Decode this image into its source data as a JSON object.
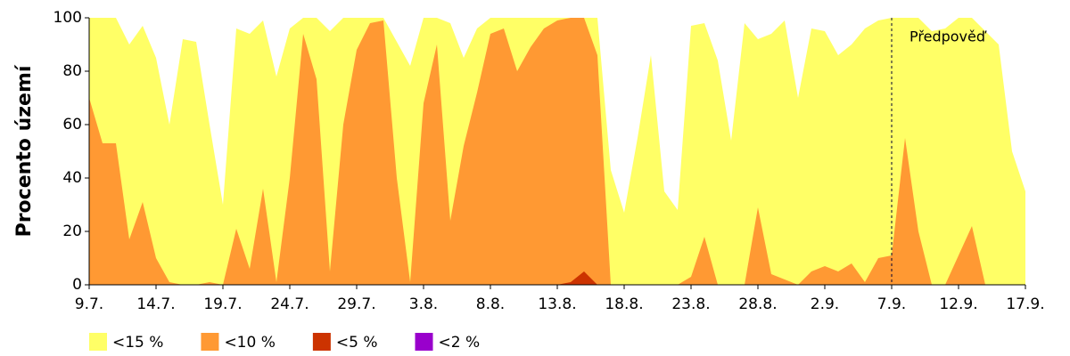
{
  "chart_data": {
    "type": "area",
    "y_label": "Procento území",
    "categories": [
      "9.7.",
      null,
      null,
      null,
      null,
      "14.7.",
      null,
      null,
      null,
      null,
      "19.7.",
      null,
      null,
      null,
      null,
      "24.7.",
      null,
      null,
      null,
      null,
      "29.7.",
      null,
      null,
      null,
      null,
      "3.8.",
      null,
      null,
      null,
      null,
      "8.8.",
      null,
      null,
      null,
      null,
      "13.8.",
      null,
      null,
      null,
      null,
      "18.8.",
      null,
      null,
      null,
      null,
      "23.8.",
      null,
      null,
      null,
      null,
      "28.8.",
      null,
      null,
      null,
      null,
      "2.9.",
      null,
      null,
      null,
      null,
      "7.9.",
      null,
      null,
      null,
      null,
      "12.9.",
      null,
      null,
      null,
      null,
      "17.9."
    ],
    "series": [
      {
        "name": "<15 %",
        "color": "#ffff66",
        "values": [
          100,
          100,
          100,
          90,
          97,
          85,
          60,
          92,
          91,
          60,
          30,
          96,
          94,
          99,
          78,
          96,
          100,
          100,
          95,
          100,
          100,
          100,
          100,
          91,
          82,
          100,
          100,
          98,
          85,
          96,
          100,
          100,
          100,
          100,
          100,
          100,
          100,
          100,
          100,
          43,
          27,
          55,
          86,
          35,
          28,
          97,
          98,
          84,
          54,
          98,
          92,
          94,
          99,
          70,
          96,
          95,
          86,
          90,
          96,
          99,
          100,
          100,
          100,
          95,
          96,
          100,
          100,
          95,
          90,
          50,
          35
        ]
      },
      {
        "name": "<10 %",
        "color": "#ff9933",
        "values": [
          70,
          53,
          53,
          17,
          31,
          10,
          1,
          0,
          0,
          1,
          0,
          21,
          6,
          36,
          1,
          40,
          94,
          77,
          5,
          60,
          88,
          98,
          99,
          40,
          1,
          68,
          90,
          24,
          52,
          72,
          94,
          96,
          80,
          89,
          96,
          99,
          100,
          100,
          86,
          0,
          0,
          0,
          0,
          0,
          0,
          3,
          18,
          0,
          0,
          0,
          29,
          4,
          2,
          0,
          5,
          7,
          5,
          8,
          1,
          10,
          11,
          55,
          20,
          0,
          0,
          11,
          22,
          0,
          0,
          0,
          0
        ]
      },
      {
        "name": "<5 %",
        "color": "#cc3300",
        "values": [
          0,
          0,
          0,
          0,
          0,
          0,
          0,
          0,
          0,
          0,
          0,
          0,
          0,
          0,
          0,
          0,
          0,
          0,
          0,
          0,
          0,
          0,
          0,
          0,
          0,
          0,
          0,
          0,
          0,
          0,
          0,
          0,
          0,
          0,
          0,
          0,
          1,
          5,
          0,
          0,
          0,
          0,
          0,
          0,
          0,
          0,
          0,
          0,
          0,
          0,
          0,
          0,
          0,
          0,
          0,
          0,
          0,
          0,
          0,
          0,
          0,
          0,
          0,
          0,
          0,
          0,
          0,
          0,
          0,
          0,
          0
        ]
      },
      {
        "name": "<2 %",
        "color": "#9900cc",
        "values": [
          0,
          0,
          0,
          0,
          0,
          0,
          0,
          0,
          0,
          0,
          0,
          0,
          0,
          0,
          0,
          0,
          0,
          0,
          0,
          0,
          0,
          0,
          0,
          0,
          0,
          0,
          0,
          0,
          0,
          0,
          0,
          0,
          0,
          0,
          0,
          0,
          0,
          0,
          0,
          0,
          0,
          0,
          0,
          0,
          0,
          0,
          0,
          0,
          0,
          0,
          0,
          0,
          0,
          0,
          0,
          0,
          0,
          0,
          0,
          0,
          0,
          0,
          0,
          0,
          0,
          0,
          0,
          0,
          0,
          0,
          0
        ]
      }
    ],
    "ylim": [
      0,
      100
    ],
    "yticks": [
      0,
      20,
      40,
      60,
      80,
      100
    ],
    "annotation": {
      "text": "Předpověď",
      "at": "7.9."
    },
    "grid": false,
    "legend": "bottom"
  }
}
